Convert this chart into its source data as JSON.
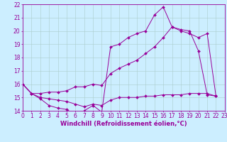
{
  "bg_color": "#cceeff",
  "grid_color": "#aacccc",
  "line_color": "#990099",
  "xlabel": "Windchill (Refroidissement éolien,°C)",
  "xlabel_fontsize": 6,
  "tick_fontsize": 5.5,
  "ylim": [
    14,
    22
  ],
  "xlim": [
    0,
    23
  ],
  "yticks": [
    14,
    15,
    16,
    17,
    18,
    19,
    20,
    21,
    22
  ],
  "xticks": [
    0,
    1,
    2,
    3,
    4,
    5,
    6,
    7,
    8,
    9,
    10,
    11,
    12,
    13,
    14,
    15,
    16,
    17,
    18,
    19,
    20,
    21,
    22,
    23
  ],
  "line1_x": [
    0,
    1,
    2,
    3,
    4,
    5,
    6,
    7,
    8,
    9,
    10,
    11,
    12,
    13,
    14,
    15,
    16,
    17,
    18,
    19,
    20,
    21,
    22
  ],
  "line1_y": [
    16.0,
    15.3,
    14.9,
    14.4,
    14.2,
    14.1,
    13.7,
    14.0,
    14.4,
    13.9,
    18.8,
    19.0,
    19.5,
    19.8,
    20.0,
    21.2,
    21.8,
    20.3,
    20.0,
    19.8,
    19.5,
    19.8,
    15.1
  ],
  "line2_x": [
    0,
    1,
    2,
    3,
    4,
    5,
    6,
    7,
    8,
    9,
    10,
    11,
    12,
    13,
    14,
    15,
    16,
    17,
    18,
    19,
    20,
    21,
    22
  ],
  "line2_y": [
    16.0,
    15.3,
    15.3,
    15.4,
    15.4,
    15.5,
    15.8,
    15.8,
    16.0,
    15.9,
    16.8,
    17.2,
    17.5,
    17.8,
    18.3,
    18.8,
    19.5,
    20.3,
    20.1,
    20.0,
    18.5,
    15.2,
    15.1
  ],
  "line3_x": [
    0,
    1,
    2,
    3,
    4,
    5,
    6,
    7,
    8,
    9,
    10,
    11,
    12,
    13,
    14,
    15,
    16,
    17,
    18,
    19,
    20,
    21,
    22
  ],
  "line3_y": [
    16.0,
    15.3,
    15.0,
    14.9,
    14.8,
    14.7,
    14.5,
    14.3,
    14.5,
    14.4,
    14.8,
    15.0,
    15.0,
    15.0,
    15.1,
    15.1,
    15.2,
    15.2,
    15.2,
    15.3,
    15.3,
    15.3,
    15.1
  ]
}
